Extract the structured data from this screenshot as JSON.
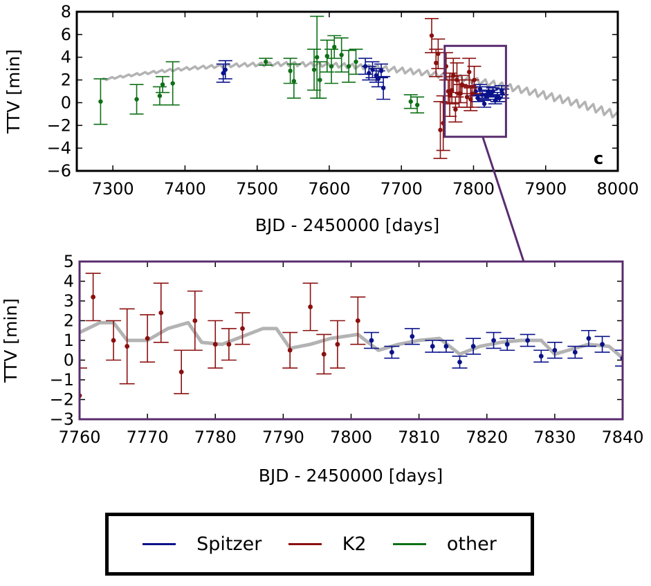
{
  "colors": {
    "Spitzer": "#0a128a",
    "K2": "#8b0f0f",
    "other": "#0d7016",
    "model": "#b3b3b3",
    "zoom_box": "#5a2c6e"
  },
  "legend": {
    "items": [
      {
        "name": "Spitzer",
        "color": "#0a128a"
      },
      {
        "name": "K2",
        "color": "#8b0f0f"
      },
      {
        "name": "other",
        "color": "#0d7016"
      }
    ]
  },
  "chart_data": [
    {
      "type": "scatter",
      "panel_label": "c",
      "xlabel": "BJD - 2450000 [days]",
      "ylabel": "TTV [min]",
      "xlim": [
        7250,
        8000
      ],
      "ylim": [
        -6,
        8
      ],
      "xticks": [
        "7300",
        "7400",
        "7500",
        "7600",
        "7700",
        "7800",
        "7900",
        "8000"
      ],
      "yticks": [
        "8",
        "6",
        "4",
        "2",
        "0",
        "−2",
        "−4",
        "−6"
      ],
      "zoom_region": {
        "x": [
          7760,
          7845
        ],
        "y": [
          -3,
          5
        ]
      },
      "model": {
        "A": 3.4,
        "center": 7540,
        "half_width": 400,
        "amp_start": 0.15,
        "amp_end": 0.7,
        "period": 11.5
      },
      "series": [
        {
          "name": "other",
          "points": [
            [
              7283,
              0.1,
              2.0
            ],
            [
              7333,
              0.3,
              1.3
            ],
            [
              7365,
              0.6,
              0.8
            ],
            [
              7369,
              1.6,
              0.7
            ],
            [
              7383,
              1.7,
              1.9
            ],
            [
              7512,
              3.6,
              0.3
            ],
            [
              7546,
              2.8,
              1.1
            ],
            [
              7551,
              1.9,
              1.5
            ],
            [
              7579,
              2.9,
              1.8
            ],
            [
              7583,
              4.0,
              3.6
            ],
            [
              7587,
              2.0,
              1.6
            ],
            [
              7597,
              4.1,
              1.4
            ],
            [
              7603,
              3.2,
              1.5
            ],
            [
              7607,
              4.9,
              1.0
            ],
            [
              7617,
              4.2,
              1.5
            ],
            [
              7627,
              3.2,
              1.4
            ],
            [
              7637,
              3.6,
              1.1
            ],
            [
              7713,
              0.1,
              0.6
            ],
            [
              7722,
              -0.2,
              0.7
            ]
          ]
        },
        {
          "name": "Spitzer",
          "points": [
            [
              7453,
              2.6,
              0.8
            ],
            [
              7456,
              2.9,
              0.8
            ],
            [
              7650,
              3.2,
              0.7
            ],
            [
              7655,
              2.6,
              0.6
            ],
            [
              7660,
              2.9,
              0.7
            ],
            [
              7665,
              2.4,
              0.6
            ],
            [
              7668,
              2.1,
              0.7
            ],
            [
              7672,
              2.8,
              0.6
            ],
            [
              7675,
              1.3,
              1.0
            ],
            [
              7803,
              1.0,
              0.4
            ],
            [
              7806,
              0.4,
              0.3
            ],
            [
              7809,
              1.2,
              0.4
            ],
            [
              7812,
              0.7,
              0.3
            ],
            [
              7815,
              -0.1,
              0.3
            ],
            [
              7818,
              0.7,
              0.4
            ],
            [
              7821,
              1.0,
              0.4
            ],
            [
              7824,
              0.8,
              0.3
            ],
            [
              7827,
              1.0,
              0.3
            ],
            [
              7830,
              0.2,
              0.3
            ],
            [
              7833,
              0.5,
              0.4
            ],
            [
              7836,
              0.4,
              0.3
            ],
            [
              7839,
              1.1,
              0.4
            ],
            [
              7840,
              0.8,
              0.4
            ]
          ]
        },
        {
          "name": "K2",
          "points": [
            [
              7742,
              5.9,
              1.5
            ],
            [
              7748,
              3.5,
              1.2
            ],
            [
              7751,
              4.3,
              1.3
            ],
            [
              7754,
              -2.4,
              2.5
            ],
            [
              7758,
              -1.8,
              2.4
            ],
            [
              7762,
              3.2,
              1.2
            ],
            [
              7765,
              1.0,
              1.0
            ],
            [
              7767,
              0.7,
              1.9
            ],
            [
              7770,
              1.1,
              1.2
            ],
            [
              7772,
              2.4,
              1.5
            ],
            [
              7775,
              -0.6,
              1.1
            ],
            [
              7777,
              2.0,
              1.5
            ],
            [
              7780,
              0.8,
              1.2
            ],
            [
              7782,
              0.8,
              0.8
            ],
            [
              7784,
              1.6,
              0.8
            ],
            [
              7791,
              0.5,
              0.9
            ],
            [
              7794,
              2.7,
              1.2
            ],
            [
              7796,
              0.3,
              1.0
            ],
            [
              7798,
              0.8,
              1.2
            ],
            [
              7801,
              2.0,
              1.2
            ]
          ]
        }
      ]
    },
    {
      "type": "scatter",
      "xlabel": "BJD - 2450000 [days]",
      "ylabel": "TTV [min]",
      "xlim": [
        7760,
        7840
      ],
      "ylim": [
        -3,
        5
      ],
      "xticks": [
        "7760",
        "7770",
        "7780",
        "7790",
        "7800",
        "7810",
        "7820",
        "7830",
        "7840"
      ],
      "yticks": [
        "5",
        "4",
        "3",
        "2",
        "1",
        "0",
        "−1",
        "−2",
        "−3"
      ],
      "model_line": [
        [
          7760,
          1.4
        ],
        [
          7763,
          1.9
        ],
        [
          7765,
          1.9
        ],
        [
          7767,
          1.0
        ],
        [
          7770,
          1.0
        ],
        [
          7773,
          1.6
        ],
        [
          7776,
          1.9
        ],
        [
          7778,
          0.9
        ],
        [
          7781,
          0.8
        ],
        [
          7784,
          1.2
        ],
        [
          7787,
          1.6
        ],
        [
          7789,
          1.6
        ],
        [
          7791,
          0.6
        ],
        [
          7794,
          0.8
        ],
        [
          7797,
          1.1
        ],
        [
          7801,
          1.3
        ],
        [
          7804,
          0.5
        ],
        [
          7807,
          0.8
        ],
        [
          7810,
          1.0
        ],
        [
          7813,
          1.1
        ],
        [
          7816,
          0.3
        ],
        [
          7819,
          0.7
        ],
        [
          7822,
          0.9
        ],
        [
          7825,
          1.0
        ],
        [
          7828,
          1.0
        ],
        [
          7830,
          0.3
        ],
        [
          7833,
          0.6
        ],
        [
          7835,
          0.8
        ],
        [
          7838,
          0.7
        ],
        [
          7840,
          0.1
        ]
      ],
      "series": [
        {
          "name": "K2",
          "points": [
            [
              7760,
              -1.8,
              1.4
            ],
            [
              7762,
              3.2,
              1.2
            ],
            [
              7765,
              1.0,
              1.0
            ],
            [
              7767,
              0.7,
              1.9
            ],
            [
              7770,
              1.1,
              1.2
            ],
            [
              7772,
              2.4,
              1.5
            ],
            [
              7775,
              -0.6,
              1.1
            ],
            [
              7777,
              2.0,
              1.5
            ],
            [
              7780,
              0.8,
              1.2
            ],
            [
              7782,
              0.8,
              0.8
            ],
            [
              7784,
              1.6,
              0.8
            ],
            [
              7791,
              0.5,
              0.9
            ],
            [
              7794,
              2.7,
              1.2
            ],
            [
              7796,
              0.3,
              1.0
            ],
            [
              7798,
              0.8,
              1.2
            ],
            [
              7801,
              2.0,
              1.2
            ]
          ]
        },
        {
          "name": "Spitzer",
          "points": [
            [
              7803,
              1.0,
              0.4
            ],
            [
              7806,
              0.4,
              0.3
            ],
            [
              7809,
              1.2,
              0.4
            ],
            [
              7812,
              0.7,
              0.3
            ],
            [
              7814,
              0.7,
              0.3
            ],
            [
              7816,
              -0.1,
              0.3
            ],
            [
              7818,
              0.7,
              0.4
            ],
            [
              7821,
              1.0,
              0.4
            ],
            [
              7823,
              0.8,
              0.3
            ],
            [
              7826,
              1.0,
              0.3
            ],
            [
              7828,
              0.2,
              0.3
            ],
            [
              7830,
              0.5,
              0.4
            ],
            [
              7833,
              0.4,
              0.3
            ],
            [
              7835,
              1.1,
              0.4
            ],
            [
              7837,
              0.8,
              0.4
            ],
            [
              7840,
              0.1,
              0.4
            ]
          ]
        }
      ]
    }
  ]
}
